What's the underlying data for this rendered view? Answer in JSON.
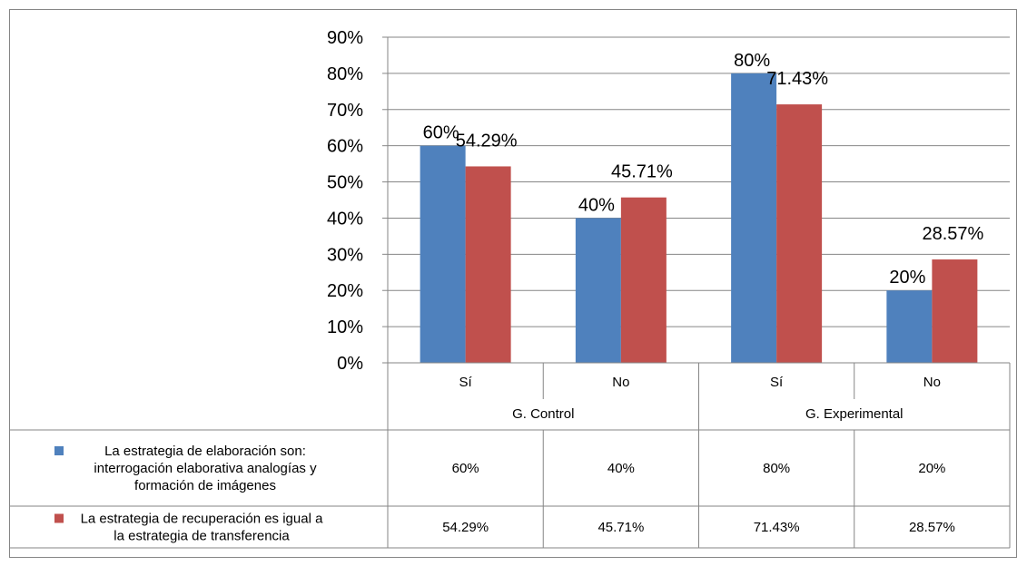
{
  "chart_data": {
    "type": "bar",
    "groups": [
      "G. Control",
      "G. Experimental"
    ],
    "categories": [
      "Sí",
      "No",
      "Sí",
      "No"
    ],
    "series": [
      {
        "name": "La estrategia de elaboración son: interrogación elaborativa analogías y formación de imágenes",
        "name_lines": [
          "La estrategia de elaboración son:",
          "interrogación elaborativa analogías y",
          "formación de imágenes"
        ],
        "values": [
          60,
          40,
          80,
          20
        ],
        "labels": [
          "60%",
          "40%",
          "80%",
          "20%"
        ],
        "color": "#4f81bd"
      },
      {
        "name": "La estrategia de recuperación es igual a la estrategia de transferencia",
        "name_lines": [
          "La estrategia de recuperación es igual a",
          "la estrategia de transferencia"
        ],
        "values": [
          54.29,
          45.71,
          71.43,
          28.57
        ],
        "labels": [
          "54.29%",
          "45.71%",
          "71.43%",
          "28.57%"
        ],
        "color": "#c0504d"
      }
    ],
    "y_ticks": [
      "0%",
      "10%",
      "20%",
      "30%",
      "40%",
      "50%",
      "60%",
      "70%",
      "80%",
      "90%"
    ],
    "ylim": [
      0,
      90
    ],
    "grid": true,
    "legend": "data-table"
  }
}
